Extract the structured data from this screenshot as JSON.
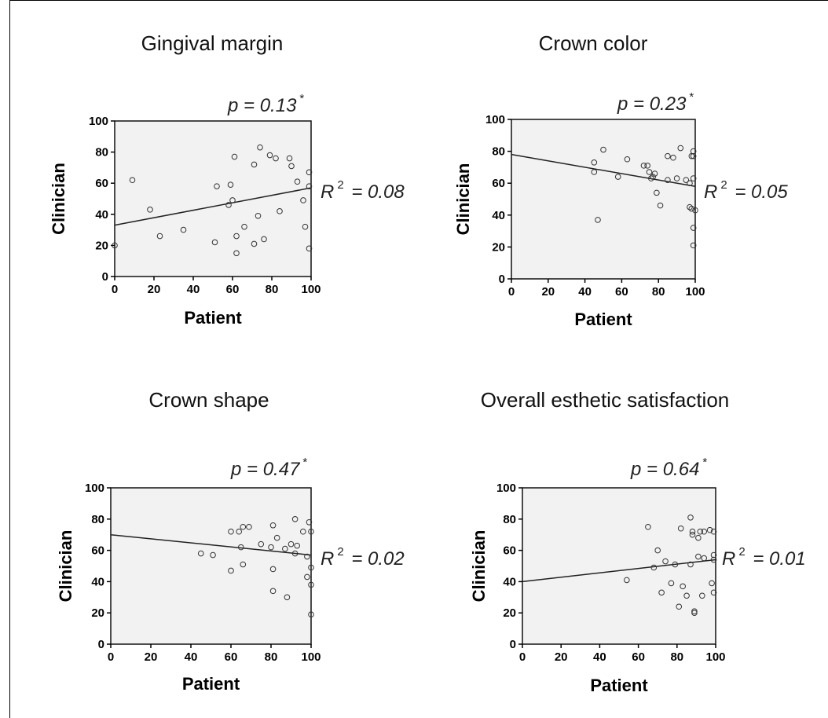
{
  "chart_data": [
    {
      "type": "scatter",
      "title": "Gingival margin",
      "xlabel": "Patient",
      "ylabel": "Clinician",
      "xlim": [
        0,
        100
      ],
      "ylim": [
        0,
        100
      ],
      "xticks": [
        "0",
        "20",
        "40",
        "60",
        "80",
        "100"
      ],
      "yticks": [
        "0",
        "20",
        "40",
        "60",
        "80",
        "100"
      ],
      "p_label": "p = 0.13",
      "r2_prefix": "R",
      "r2_exp": "2",
      "r2_value": "= 0.08",
      "star": "*",
      "fit_line": {
        "y_at_x0": 33,
        "y_at_x100": 57
      },
      "points": [
        [
          0,
          20
        ],
        [
          9,
          62
        ],
        [
          18,
          43
        ],
        [
          23,
          26
        ],
        [
          35,
          30
        ],
        [
          51,
          22
        ],
        [
          52,
          58
        ],
        [
          58,
          46
        ],
        [
          59,
          59
        ],
        [
          60,
          49
        ],
        [
          61,
          77
        ],
        [
          62,
          26
        ],
        [
          62,
          15
        ],
        [
          66,
          32
        ],
        [
          71,
          72
        ],
        [
          71,
          21
        ],
        [
          73,
          39
        ],
        [
          74,
          83
        ],
        [
          76,
          24
        ],
        [
          79,
          78
        ],
        [
          82,
          76
        ],
        [
          84,
          42
        ],
        [
          89,
          76
        ],
        [
          90,
          71
        ],
        [
          93,
          61
        ],
        [
          96,
          49
        ],
        [
          97,
          32
        ],
        [
          99,
          58
        ],
        [
          99,
          67
        ],
        [
          99,
          18
        ]
      ]
    },
    {
      "type": "scatter",
      "title": "Crown color",
      "xlabel": "Patient",
      "ylabel": "Clinician",
      "xlim": [
        0,
        100
      ],
      "ylim": [
        0,
        100
      ],
      "xticks": [
        "0",
        "20",
        "40",
        "60",
        "80",
        "100"
      ],
      "yticks": [
        "0",
        "20",
        "40",
        "60",
        "80",
        "100"
      ],
      "p_label": "p = 0.23",
      "r2_prefix": "R",
      "r2_exp": "2",
      "r2_value": "= 0.05",
      "star": "*",
      "fit_line": {
        "y_at_x0": 78,
        "y_at_x100": 58
      },
      "points": [
        [
          45,
          73
        ],
        [
          45,
          67
        ],
        [
          47,
          37
        ],
        [
          50,
          81
        ],
        [
          58,
          64
        ],
        [
          63,
          75
        ],
        [
          72,
          71
        ],
        [
          74,
          71
        ],
        [
          75,
          67
        ],
        [
          76,
          63
        ],
        [
          77,
          64
        ],
        [
          78,
          66
        ],
        [
          79,
          54
        ],
        [
          81,
          46
        ],
        [
          85,
          77
        ],
        [
          85,
          62
        ],
        [
          88,
          76
        ],
        [
          90,
          63
        ],
        [
          92,
          82
        ],
        [
          95,
          62
        ],
        [
          97,
          45
        ],
        [
          97,
          60
        ],
        [
          98,
          44
        ],
        [
          98,
          77
        ],
        [
          99,
          80
        ],
        [
          99,
          77
        ],
        [
          99,
          63
        ],
        [
          100,
          43
        ],
        [
          99,
          32
        ],
        [
          99,
          21
        ]
      ]
    },
    {
      "type": "scatter",
      "title": "Crown shape",
      "xlabel": "Patient",
      "ylabel": "Clinician",
      "xlim": [
        0,
        100
      ],
      "ylim": [
        0,
        100
      ],
      "xticks": [
        "0",
        "20",
        "40",
        "60",
        "80",
        "100"
      ],
      "yticks": [
        "0",
        "20",
        "40",
        "60",
        "80",
        "100"
      ],
      "p_label": "p = 0.47",
      "r2_prefix": "R",
      "r2_exp": "2",
      "r2_value": "= 0.02",
      "star": "*",
      "fit_line": {
        "y_at_x0": 70,
        "y_at_x100": 57
      },
      "points": [
        [
          45,
          58
        ],
        [
          51,
          57
        ],
        [
          60,
          72
        ],
        [
          60,
          47
        ],
        [
          64,
          72
        ],
        [
          65,
          62
        ],
        [
          66,
          75
        ],
        [
          66,
          51
        ],
        [
          69,
          75
        ],
        [
          75,
          64
        ],
        [
          80,
          62
        ],
        [
          81,
          76
        ],
        [
          81,
          48
        ],
        [
          81,
          34
        ],
        [
          83,
          68
        ],
        [
          87,
          61
        ],
        [
          88,
          30
        ],
        [
          90,
          64
        ],
        [
          92,
          80
        ],
        [
          92,
          58
        ],
        [
          93,
          63
        ],
        [
          96,
          72
        ],
        [
          98,
          56
        ],
        [
          98,
          43
        ],
        [
          99,
          78
        ],
        [
          100,
          72
        ],
        [
          100,
          49
        ],
        [
          100,
          38
        ],
        [
          100,
          19
        ]
      ]
    },
    {
      "type": "scatter",
      "title": "Overall esthetic satisfaction",
      "xlabel": "Patient",
      "ylabel": "Clinician",
      "xlim": [
        0,
        100
      ],
      "ylim": [
        0,
        100
      ],
      "xticks": [
        "0",
        "20",
        "40",
        "60",
        "80",
        "100"
      ],
      "yticks": [
        "0",
        "20",
        "40",
        "60",
        "80",
        "100"
      ],
      "p_label": "p = 0.64",
      "r2_prefix": "R",
      "r2_exp": "2",
      "r2_value": "= 0.01",
      "star": "*",
      "fit_line": {
        "y_at_x0": 40,
        "y_at_x100": 54
      },
      "points": [
        [
          54,
          41
        ],
        [
          65,
          75
        ],
        [
          68,
          49
        ],
        [
          70,
          60
        ],
        [
          72,
          33
        ],
        [
          74,
          53
        ],
        [
          77,
          39
        ],
        [
          79,
          51
        ],
        [
          81,
          24
        ],
        [
          82,
          74
        ],
        [
          83,
          37
        ],
        [
          85,
          31
        ],
        [
          87,
          81
        ],
        [
          87,
          51
        ],
        [
          88,
          72
        ],
        [
          88,
          70
        ],
        [
          89,
          21
        ],
        [
          89,
          20
        ],
        [
          91,
          56
        ],
        [
          91,
          68
        ],
        [
          92,
          72
        ],
        [
          93,
          31
        ],
        [
          94,
          55
        ],
        [
          94,
          72
        ],
        [
          97,
          73
        ],
        [
          98,
          39
        ],
        [
          99,
          72
        ],
        [
          99,
          57
        ],
        [
          99,
          54
        ],
        [
          99,
          33
        ]
      ]
    }
  ]
}
